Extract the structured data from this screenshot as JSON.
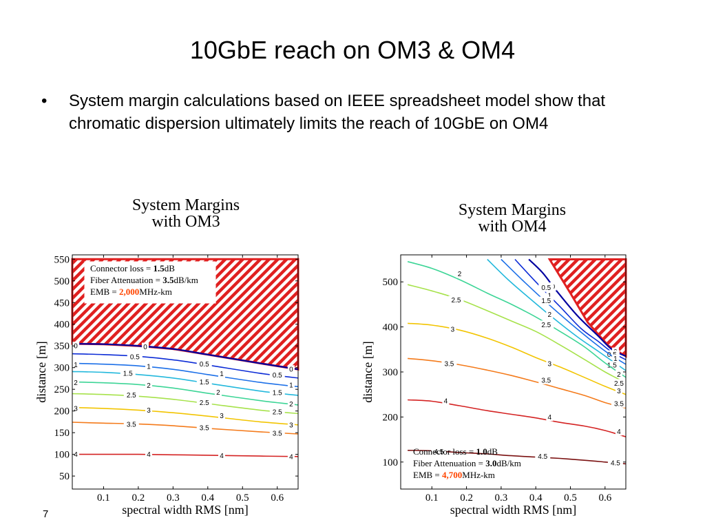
{
  "slide": {
    "title": "10GbE reach on OM3 & OM4",
    "bullet": "System margin calculations based on IEEE spreadsheet model show that chromatic dispersion ultimately limits the reach of 10GbE on OM4",
    "bullet_marker": "•",
    "slide_number": "7"
  },
  "colors": {
    "hatch": "#e02020",
    "0": "#0000a0",
    "0.5": "#0b2bd6",
    "1": "#1b6fe8",
    "1.5": "#22b8dc",
    "2": "#3cd596",
    "2.5": "#a6e24a",
    "3": "#f2c400",
    "3.5": "#f47a1a",
    "4": "#d42222",
    "4.5": "#7a1010"
  },
  "chart_data": [
    {
      "type": "contour",
      "title_lines": [
        "System Margins",
        "with OM3"
      ],
      "xlabel": "spectral width RMS [nm]",
      "ylabel": "distance [m]",
      "xlim": [
        0.01,
        0.66
      ],
      "ylim": [
        20,
        560
      ],
      "xticks": [
        0.1,
        0.2,
        0.3,
        0.4,
        0.5,
        0.6
      ],
      "yticks": [
        50,
        100,
        150,
        200,
        250,
        300,
        350,
        400,
        450,
        500,
        550
      ],
      "annotation": {
        "connector_prefix": "Connector loss = ",
        "connector_value": "1.5",
        "connector_unit": "dB",
        "atten_prefix": "Fiber Attenuation = ",
        "atten_value": "3.5",
        "atten_unit": "dB/km",
        "emb_prefix": "EMB = ",
        "emb_value": "2,000",
        "emb_unit": "MHz-km"
      },
      "infeasible_region": [
        [
          0.01,
          550
        ],
        [
          0.66,
          550
        ],
        [
          0.66,
          296
        ],
        [
          0.55,
          310
        ],
        [
          0.4,
          330
        ],
        [
          0.3,
          343
        ],
        [
          0.2,
          350
        ],
        [
          0.1,
          354
        ],
        [
          0.01,
          355
        ]
      ],
      "contours": [
        {
          "level": "0",
          "points": [
            [
              0.01,
              355
            ],
            [
              0.1,
              354
            ],
            [
              0.2,
              350
            ],
            [
              0.3,
              343
            ],
            [
              0.4,
              330
            ],
            [
              0.55,
              310
            ],
            [
              0.66,
              296
            ]
          ],
          "labels": [
            [
              0.02,
              350
            ],
            [
              0.22,
              348
            ],
            [
              0.64,
              296
            ]
          ]
        },
        {
          "level": "0.5",
          "points": [
            [
              0.01,
              332
            ],
            [
              0.1,
              330
            ],
            [
              0.2,
              326
            ],
            [
              0.3,
              318
            ],
            [
              0.4,
              306
            ],
            [
              0.55,
              287
            ],
            [
              0.66,
              276
            ]
          ],
          "labels": [
            [
              0.19,
              325
            ],
            [
              0.39,
              308
            ],
            [
              0.6,
              283
            ]
          ]
        },
        {
          "level": "1",
          "points": [
            [
              0.01,
              310
            ],
            [
              0.1,
              308
            ],
            [
              0.2,
              304
            ],
            [
              0.3,
              296
            ],
            [
              0.4,
              284
            ],
            [
              0.55,
              266
            ],
            [
              0.66,
              256
            ]
          ],
          "labels": [
            [
              0.02,
              307
            ],
            [
              0.23,
              303
            ],
            [
              0.44,
              286
            ],
            [
              0.64,
              260
            ]
          ]
        },
        {
          "level": "1.5",
          "points": [
            [
              0.01,
              291
            ],
            [
              0.1,
              289
            ],
            [
              0.2,
              284
            ],
            [
              0.3,
              276
            ],
            [
              0.4,
              264
            ],
            [
              0.55,
              246
            ],
            [
              0.66,
              236
            ]
          ],
          "labels": [
            [
              0.17,
              287
            ],
            [
              0.39,
              267
            ],
            [
              0.6,
              242
            ]
          ]
        },
        {
          "level": "2",
          "points": [
            [
              0.01,
              267
            ],
            [
              0.1,
              265
            ],
            [
              0.2,
              261
            ],
            [
              0.3,
              253
            ],
            [
              0.4,
              241
            ],
            [
              0.55,
              224
            ],
            [
              0.66,
              214
            ]
          ],
          "labels": [
            [
              0.02,
              265
            ],
            [
              0.23,
              259
            ],
            [
              0.43,
              243
            ],
            [
              0.64,
              216
            ]
          ]
        },
        {
          "level": "2.5",
          "points": [
            [
              0.01,
              240
            ],
            [
              0.1,
              238
            ],
            [
              0.2,
              234
            ],
            [
              0.3,
              227
            ],
            [
              0.4,
              217
            ],
            [
              0.55,
              202
            ],
            [
              0.66,
              194
            ]
          ],
          "labels": [
            [
              0.18,
              237
            ],
            [
              0.39,
              219
            ],
            [
              0.6,
              198
            ]
          ]
        },
        {
          "level": "3",
          "points": [
            [
              0.01,
              208
            ],
            [
              0.1,
              206
            ],
            [
              0.2,
              202
            ],
            [
              0.3,
              196
            ],
            [
              0.4,
              188
            ],
            [
              0.55,
              175
            ],
            [
              0.66,
              168
            ]
          ],
          "labels": [
            [
              0.02,
              206
            ],
            [
              0.23,
              202
            ],
            [
              0.44,
              189
            ],
            [
              0.64,
              168
            ]
          ]
        },
        {
          "level": "3.5",
          "points": [
            [
              0.01,
              174
            ],
            [
              0.1,
              172
            ],
            [
              0.2,
              170
            ],
            [
              0.3,
              166
            ],
            [
              0.4,
              160
            ],
            [
              0.55,
              152
            ],
            [
              0.66,
              147
            ]
          ],
          "labels": [
            [
              0.18,
              169
            ],
            [
              0.39,
              161
            ],
            [
              0.6,
              149
            ]
          ]
        },
        {
          "level": "4",
          "points": [
            [
              0.01,
              100
            ],
            [
              0.1,
              100
            ],
            [
              0.2,
              100
            ],
            [
              0.3,
              99
            ],
            [
              0.4,
              98
            ],
            [
              0.55,
              96
            ],
            [
              0.66,
              95
            ]
          ],
          "labels": [
            [
              0.02,
              100
            ],
            [
              0.23,
              100
            ],
            [
              0.44,
              97
            ],
            [
              0.64,
              95
            ]
          ]
        }
      ]
    },
    {
      "type": "contour",
      "title_lines": [
        "System Margins",
        "with OM4"
      ],
      "xlabel": "spectral width RMS [nm]",
      "ylabel": "distance [m]",
      "xlim": [
        0.01,
        0.66
      ],
      "ylim": [
        40,
        560
      ],
      "xticks": [
        0.1,
        0.2,
        0.3,
        0.4,
        0.5,
        0.6
      ],
      "yticks": [
        100,
        200,
        300,
        400,
        500
      ],
      "annotation": {
        "connector_prefix": "Connector loss = ",
        "connector_value": "1.0",
        "connector_unit": "dB",
        "atten_prefix": "Fiber Attenuation = ",
        "atten_value": "3.0",
        "atten_unit": "dB/km",
        "emb_prefix": "EMB = ",
        "emb_value": "4,700",
        "emb_unit": "MHz-km"
      },
      "infeasible_region": [
        [
          0.44,
          550
        ],
        [
          0.66,
          550
        ],
        [
          0.66,
          335
        ],
        [
          0.61,
          358
        ],
        [
          0.55,
          410
        ],
        [
          0.5,
          475
        ],
        [
          0.44,
          550
        ]
      ],
      "contours": [
        {
          "level": "0",
          "points": [
            [
              0.38,
              550
            ],
            [
              0.42,
              520
            ],
            [
              0.46,
              480
            ],
            [
              0.52,
              425
            ],
            [
              0.58,
              380
            ],
            [
              0.62,
              350
            ],
            [
              0.66,
              335
            ]
          ],
          "labels": [
            [
              0.45,
              490
            ],
            [
              0.63,
              345
            ]
          ]
        },
        {
          "level": "0.5",
          "points": [
            [
              0.34,
              550
            ],
            [
              0.4,
              500
            ],
            [
              0.47,
              445
            ],
            [
              0.53,
              397
            ],
            [
              0.58,
              368
            ],
            [
              0.62,
              344
            ],
            [
              0.66,
              327
            ]
          ],
          "labels": [
            [
              0.43,
              487
            ],
            [
              0.62,
              339
            ]
          ]
        },
        {
          "level": "1",
          "points": [
            [
              0.3,
              550
            ],
            [
              0.36,
              505
            ],
            [
              0.43,
              455
            ],
            [
              0.5,
              408
            ],
            [
              0.56,
              370
            ],
            [
              0.61,
              341
            ],
            [
              0.66,
              317
            ]
          ],
          "labels": [
            [
              0.44,
              470
            ],
            [
              0.63,
              330
            ]
          ]
        },
        {
          "level": "1.5",
          "points": [
            [
              0.26,
              550
            ],
            [
              0.32,
              505
            ],
            [
              0.38,
              465
            ],
            [
              0.45,
              420
            ],
            [
              0.52,
              378
            ],
            [
              0.58,
              346
            ],
            [
              0.66,
              303
            ]
          ],
          "labels": [
            [
              0.43,
              458
            ],
            [
              0.62,
              315
            ]
          ]
        },
        {
          "level": "2",
          "points": [
            [
              0.03,
              545
            ],
            [
              0.1,
              530
            ],
            [
              0.18,
              505
            ],
            [
              0.26,
              475
            ],
            [
              0.33,
              450
            ],
            [
              0.4,
              422
            ],
            [
              0.47,
              390
            ],
            [
              0.54,
              356
            ],
            [
              0.6,
              320
            ],
            [
              0.66,
              288
            ]
          ],
          "labels": [
            [
              0.18,
              518
            ],
            [
              0.44,
              428
            ],
            [
              0.64,
              295
            ]
          ]
        },
        {
          "level": "2.5",
          "points": [
            [
              0.03,
              494
            ],
            [
              0.1,
              480
            ],
            [
              0.18,
              461
            ],
            [
              0.26,
              436
            ],
            [
              0.33,
              413
            ],
            [
              0.4,
              390
            ],
            [
              0.47,
              360
            ],
            [
              0.54,
              328
            ],
            [
              0.6,
              300
            ],
            [
              0.66,
              276
            ]
          ],
          "labels": [
            [
              0.17,
              460
            ],
            [
              0.43,
              405
            ],
            [
              0.64,
              275
            ]
          ]
        },
        {
          "level": "3",
          "points": [
            [
              0.03,
              408
            ],
            [
              0.1,
              404
            ],
            [
              0.18,
              393
            ],
            [
              0.26,
              375
            ],
            [
              0.33,
              355
            ],
            [
              0.4,
              332
            ],
            [
              0.47,
              311
            ],
            [
              0.54,
              288
            ],
            [
              0.6,
              268
            ],
            [
              0.66,
              250
            ]
          ],
          "labels": [
            [
              0.16,
              395
            ],
            [
              0.44,
              318
            ],
            [
              0.64,
              258
            ]
          ]
        },
        {
          "level": "3.5",
          "points": [
            [
              0.03,
              330
            ],
            [
              0.1,
              325
            ],
            [
              0.18,
              316
            ],
            [
              0.26,
              304
            ],
            [
              0.33,
              292
            ],
            [
              0.4,
              278
            ],
            [
              0.47,
              263
            ],
            [
              0.54,
              248
            ],
            [
              0.6,
              232
            ],
            [
              0.66,
              220
            ]
          ],
          "labels": [
            [
              0.15,
              318
            ],
            [
              0.43,
              282
            ],
            [
              0.64,
              230
            ]
          ]
        },
        {
          "level": "4",
          "points": [
            [
              0.03,
              238
            ],
            [
              0.1,
              235
            ],
            [
              0.18,
              225
            ],
            [
              0.26,
              214
            ],
            [
              0.33,
              206
            ],
            [
              0.4,
              198
            ],
            [
              0.47,
              188
            ],
            [
              0.54,
              180
            ],
            [
              0.6,
              170
            ],
            [
              0.66,
              156
            ]
          ],
          "labels": [
            [
              0.14,
              236
            ],
            [
              0.44,
              200
            ],
            [
              0.64,
              168
            ]
          ]
        },
        {
          "level": "4.5",
          "points": [
            [
              0.03,
              126
            ],
            [
              0.1,
              125
            ],
            [
              0.18,
              121
            ],
            [
              0.26,
              118
            ],
            [
              0.33,
              114
            ],
            [
              0.4,
              111
            ],
            [
              0.47,
              108
            ],
            [
              0.54,
              104
            ],
            [
              0.6,
              100
            ],
            [
              0.66,
              96
            ]
          ],
          "labels": [
            [
              0.12,
              123
            ],
            [
              0.42,
              113
            ],
            [
              0.63,
              98
            ]
          ]
        }
      ]
    }
  ]
}
